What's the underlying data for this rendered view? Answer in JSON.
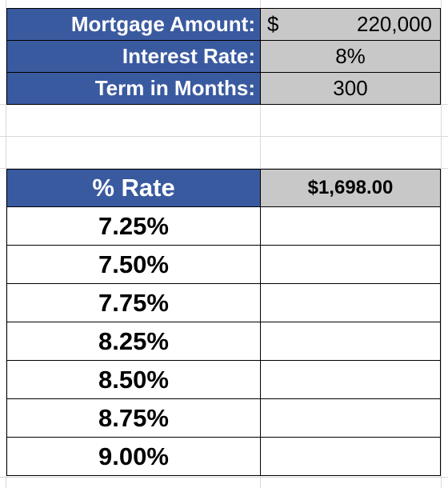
{
  "inputs": {
    "mortgage_amount_label": "Mortgage Amount:",
    "mortgage_amount_currency": "$",
    "mortgage_amount_value": "220,000",
    "interest_rate_label": "Interest Rate:",
    "interest_rate_value": "8%",
    "term_label": "Term in Months:",
    "term_value": "300"
  },
  "table": {
    "rate_header": "% Rate",
    "payment_header": "$1,698.00",
    "rates": [
      "7.25%",
      "7.50%",
      "7.75%",
      "8.25%",
      "8.50%",
      "8.75%",
      "9.00%"
    ]
  },
  "colors": {
    "header_blue": "#3a5aa0",
    "value_gray": "#c8c8c8"
  }
}
